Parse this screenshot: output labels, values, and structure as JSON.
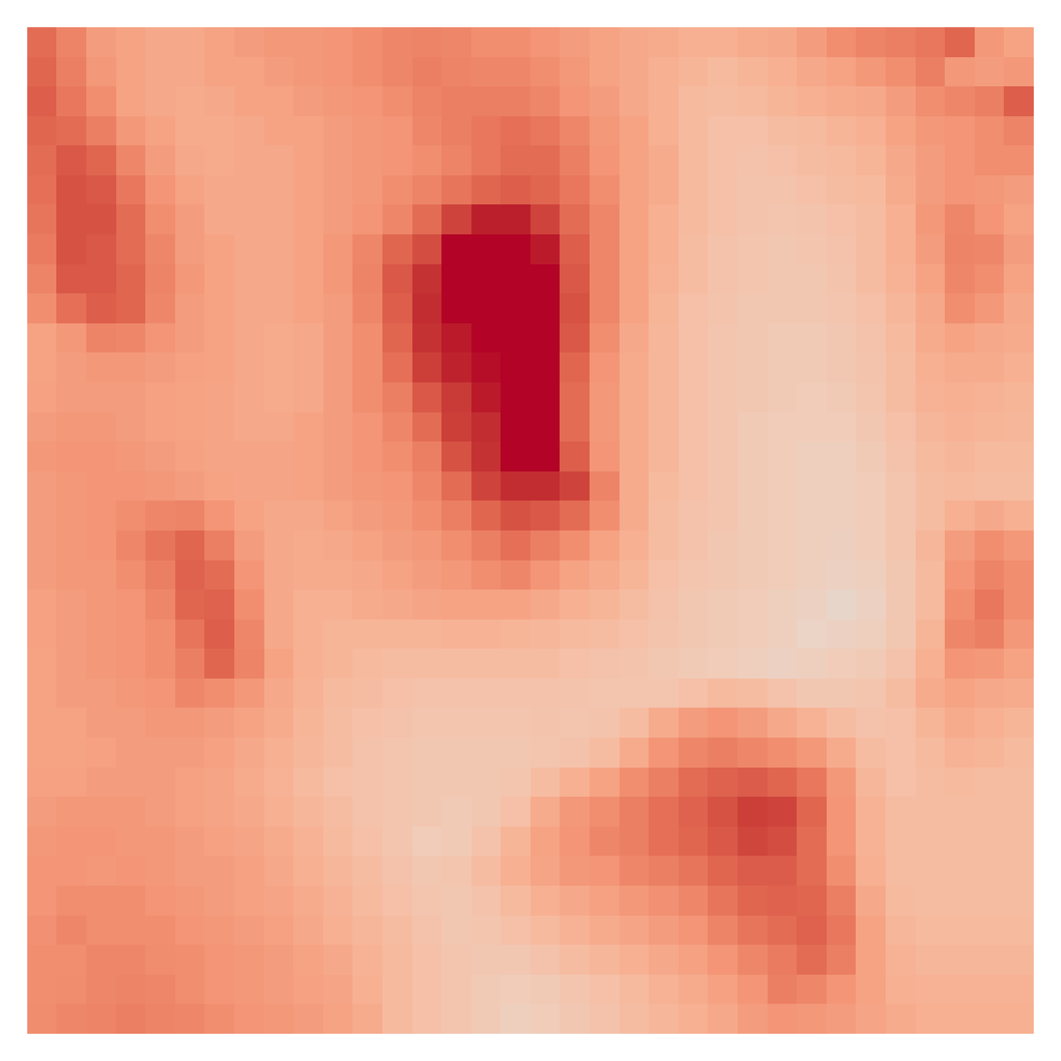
{
  "chart_data": {
    "type": "heatmap",
    "color": "coolwarm",
    "color_range": [
      -100,
      100
    ],
    "tick_labels": false,
    "cells": [
      [
        70,
        60,
        48,
        45,
        42,
        42,
        45,
        48,
        50,
        50,
        52,
        55,
        58,
        60,
        58,
        55,
        55,
        52,
        48,
        45,
        42,
        40,
        38,
        38,
        40,
        42,
        48,
        55,
        60,
        62,
        65,
        72,
        50,
        45
      ],
      [
        72,
        62,
        50,
        45,
        42,
        42,
        45,
        45,
        48,
        50,
        52,
        55,
        58,
        62,
        60,
        58,
        58,
        55,
        50,
        45,
        42,
        38,
        35,
        32,
        35,
        38,
        42,
        45,
        50,
        55,
        62,
        50,
        48,
        50
      ],
      [
        75,
        65,
        55,
        45,
        42,
        40,
        42,
        45,
        45,
        48,
        50,
        52,
        55,
        60,
        62,
        62,
        62,
        58,
        52,
        48,
        42,
        38,
        32,
        30,
        32,
        35,
        38,
        40,
        42,
        48,
        55,
        58,
        62,
        75
      ],
      [
        72,
        70,
        62,
        50,
        45,
        40,
        40,
        42,
        45,
        45,
        48,
        50,
        52,
        58,
        62,
        65,
        68,
        65,
        58,
        50,
        45,
        38,
        32,
        28,
        28,
        30,
        32,
        35,
        38,
        45,
        50,
        52,
        55,
        60
      ],
      [
        70,
        78,
        72,
        58,
        48,
        42,
        40,
        42,
        42,
        45,
        48,
        50,
        52,
        55,
        60,
        65,
        70,
        70,
        62,
        52,
        45,
        40,
        32,
        28,
        26,
        28,
        30,
        32,
        35,
        42,
        48,
        52,
        55,
        55
      ],
      [
        68,
        80,
        78,
        65,
        52,
        45,
        42,
        42,
        42,
        45,
        48,
        50,
        55,
        60,
        66,
        72,
        75,
        72,
        65,
        55,
        45,
        40,
        32,
        28,
        25,
        25,
        28,
        30,
        32,
        40,
        48,
        52,
        50,
        48
      ],
      [
        66,
        80,
        80,
        70,
        55,
        48,
        42,
        42,
        42,
        45,
        48,
        52,
        58,
        70,
        85,
        95,
        95,
        85,
        70,
        58,
        45,
        38,
        32,
        28,
        25,
        24,
        25,
        28,
        30,
        38,
        50,
        58,
        52,
        45
      ],
      [
        64,
        80,
        78,
        70,
        58,
        48,
        45,
        42,
        42,
        45,
        50,
        58,
        72,
        82,
        100,
        100,
        100,
        96,
        75,
        58,
        45,
        38,
        30,
        26,
        24,
        22,
        24,
        26,
        30,
        38,
        48,
        60,
        58,
        48
      ],
      [
        60,
        78,
        78,
        72,
        60,
        50,
        45,
        42,
        42,
        45,
        50,
        60,
        78,
        90,
        100,
        100,
        100,
        100,
        78,
        58,
        45,
        36,
        30,
        26,
        24,
        22,
        22,
        25,
        30,
        36,
        45,
        58,
        55,
        45
      ],
      [
        55,
        68,
        75,
        72,
        58,
        48,
        45,
        42,
        42,
        45,
        48,
        58,
        75,
        92,
        100,
        100,
        100,
        100,
        80,
        58,
        45,
        35,
        28,
        25,
        22,
        22,
        22,
        24,
        28,
        34,
        42,
        55,
        50,
        42
      ],
      [
        45,
        50,
        60,
        58,
        52,
        48,
        45,
        42,
        40,
        42,
        48,
        55,
        72,
        90,
        96,
        100,
        100,
        100,
        78,
        55,
        42,
        34,
        28,
        24,
        22,
        20,
        20,
        22,
        26,
        32,
        40,
        45,
        42,
        40
      ],
      [
        45,
        48,
        50,
        50,
        48,
        46,
        45,
        42,
        40,
        42,
        48,
        55,
        68,
        86,
        94,
        98,
        100,
        100,
        72,
        52,
        40,
        34,
        28,
        24,
        22,
        20,
        20,
        22,
        25,
        30,
        38,
        40,
        40,
        38
      ],
      [
        46,
        48,
        48,
        48,
        46,
        45,
        44,
        42,
        40,
        42,
        48,
        55,
        62,
        78,
        88,
        96,
        100,
        100,
        70,
        50,
        40,
        34,
        28,
        24,
        22,
        20,
        18,
        20,
        24,
        30,
        36,
        38,
        36,
        35
      ],
      [
        48,
        50,
        50,
        48,
        46,
        45,
        44,
        42,
        42,
        45,
        48,
        52,
        58,
        70,
        86,
        92,
        100,
        100,
        70,
        50,
        40,
        34,
        28,
        24,
        20,
        18,
        18,
        18,
        22,
        28,
        34,
        36,
        35,
        34
      ],
      [
        50,
        52,
        52,
        50,
        48,
        46,
        44,
        44,
        44,
        45,
        48,
        52,
        55,
        62,
        80,
        90,
        100,
        100,
        75,
        52,
        40,
        34,
        28,
        24,
        20,
        18,
        16,
        16,
        20,
        26,
        32,
        34,
        32,
        32
      ],
      [
        48,
        50,
        52,
        52,
        50,
        48,
        45,
        44,
        44,
        45,
        48,
        50,
        52,
        58,
        70,
        85,
        92,
        92,
        85,
        60,
        40,
        32,
        28,
        24,
        20,
        18,
        16,
        16,
        18,
        24,
        30,
        32,
        30,
        30
      ],
      [
        48,
        50,
        52,
        55,
        58,
        60,
        52,
        45,
        42,
        42,
        45,
        48,
        50,
        55,
        62,
        72,
        80,
        78,
        70,
        55,
        40,
        30,
        26,
        24,
        20,
        18,
        16,
        16,
        18,
        24,
        30,
        38,
        42,
        38
      ],
      [
        48,
        50,
        52,
        58,
        66,
        72,
        62,
        48,
        42,
        40,
        42,
        45,
        48,
        50,
        55,
        62,
        68,
        62,
        55,
        45,
        38,
        30,
        26,
        22,
        20,
        18,
        16,
        15,
        18,
        24,
        34,
        48,
        55,
        50
      ],
      [
        48,
        50,
        50,
        55,
        62,
        74,
        70,
        52,
        42,
        40,
        40,
        42,
        45,
        48,
        50,
        55,
        58,
        52,
        45,
        40,
        35,
        28,
        24,
        22,
        20,
        18,
        16,
        14,
        16,
        22,
        32,
        52,
        60,
        55
      ],
      [
        46,
        48,
        50,
        52,
        58,
        72,
        74,
        55,
        42,
        38,
        38,
        40,
        42,
        44,
        45,
        45,
        45,
        42,
        38,
        35,
        30,
        26,
        22,
        20,
        18,
        16,
        14,
        10,
        14,
        22,
        32,
        55,
        65,
        55
      ],
      [
        46,
        48,
        50,
        52,
        55,
        66,
        75,
        58,
        42,
        38,
        35,
        35,
        35,
        35,
        36,
        36,
        35,
        34,
        32,
        30,
        28,
        25,
        22,
        20,
        18,
        16,
        12,
        14,
        16,
        22,
        35,
        58,
        62,
        50
      ],
      [
        45,
        48,
        50,
        52,
        55,
        62,
        72,
        60,
        45,
        38,
        35,
        32,
        30,
        30,
        30,
        30,
        30,
        30,
        28,
        26,
        25,
        22,
        20,
        18,
        16,
        14,
        16,
        18,
        20,
        26,
        38,
        52,
        50,
        45
      ],
      [
        45,
        48,
        48,
        50,
        52,
        58,
        55,
        50,
        42,
        36,
        32,
        30,
        28,
        26,
        26,
        26,
        26,
        26,
        25,
        24,
        24,
        24,
        28,
        32,
        30,
        26,
        22,
        22,
        24,
        30,
        40,
        45,
        42,
        40
      ],
      [
        45,
        45,
        48,
        48,
        50,
        50,
        48,
        45,
        40,
        35,
        30,
        28,
        26,
        24,
        24,
        24,
        24,
        25,
        24,
        25,
        30,
        40,
        48,
        52,
        48,
        42,
        36,
        30,
        26,
        28,
        35,
        40,
        38,
        35
      ],
      [
        45,
        45,
        46,
        48,
        48,
        48,
        46,
        42,
        38,
        34,
        30,
        26,
        24,
        22,
        22,
        22,
        22,
        24,
        26,
        30,
        40,
        52,
        58,
        62,
        58,
        55,
        50,
        40,
        30,
        28,
        32,
        36,
        35,
        32
      ],
      [
        46,
        46,
        48,
        48,
        48,
        46,
        44,
        40,
        36,
        32,
        28,
        26,
        24,
        22,
        22,
        22,
        24,
        30,
        38,
        45,
        55,
        62,
        70,
        74,
        76,
        72,
        65,
        50,
        34,
        28,
        30,
        32,
        30,
        30
      ],
      [
        48,
        50,
        50,
        50,
        48,
        46,
        44,
        42,
        38,
        34,
        30,
        26,
        24,
        22,
        20,
        22,
        28,
        40,
        50,
        55,
        62,
        68,
        74,
        80,
        86,
        85,
        72,
        52,
        36,
        30,
        30,
        30,
        30,
        30
      ],
      [
        50,
        52,
        52,
        50,
        50,
        48,
        46,
        44,
        40,
        36,
        32,
        28,
        24,
        18,
        20,
        26,
        35,
        45,
        52,
        58,
        62,
        68,
        72,
        78,
        84,
        82,
        70,
        52,
        36,
        30,
        30,
        30,
        30,
        30
      ],
      [
        52,
        52,
        50,
        52,
        50,
        48,
        48,
        46,
        42,
        38,
        34,
        30,
        26,
        22,
        24,
        30,
        38,
        44,
        50,
        52,
        58,
        62,
        66,
        72,
        76,
        76,
        70,
        55,
        38,
        30,
        30,
        30,
        30,
        30
      ],
      [
        52,
        55,
        55,
        55,
        52,
        50,
        48,
        46,
        44,
        40,
        36,
        32,
        28,
        24,
        22,
        26,
        32,
        38,
        42,
        46,
        50,
        54,
        58,
        66,
        72,
        74,
        72,
        62,
        42,
        32,
        30,
        30,
        30,
        30
      ],
      [
        54,
        58,
        55,
        55,
        55,
        52,
        50,
        48,
        46,
        42,
        38,
        34,
        30,
        26,
        22,
        24,
        28,
        32,
        36,
        40,
        44,
        48,
        52,
        60,
        66,
        70,
        74,
        65,
        45,
        34,
        32,
        32,
        32,
        32
      ],
      [
        55,
        55,
        58,
        58,
        56,
        55,
        52,
        50,
        48,
        45,
        42,
        36,
        32,
        28,
        24,
        22,
        22,
        26,
        30,
        34,
        38,
        42,
        46,
        52,
        58,
        64,
        70,
        62,
        45,
        36,
        34,
        34,
        34,
        34
      ],
      [
        55,
        56,
        58,
        60,
        58,
        55,
        52,
        50,
        48,
        46,
        44,
        38,
        32,
        28,
        24,
        20,
        18,
        20,
        24,
        28,
        32,
        36,
        40,
        46,
        52,
        62,
        58,
        52,
        45,
        38,
        36,
        36,
        36,
        36
      ],
      [
        56,
        58,
        60,
        62,
        60,
        58,
        55,
        52,
        50,
        48,
        45,
        40,
        32,
        28,
        24,
        20,
        16,
        18,
        22,
        26,
        30,
        34,
        38,
        42,
        48,
        52,
        50,
        48,
        44,
        40,
        38,
        38,
        38,
        38
      ]
    ]
  }
}
